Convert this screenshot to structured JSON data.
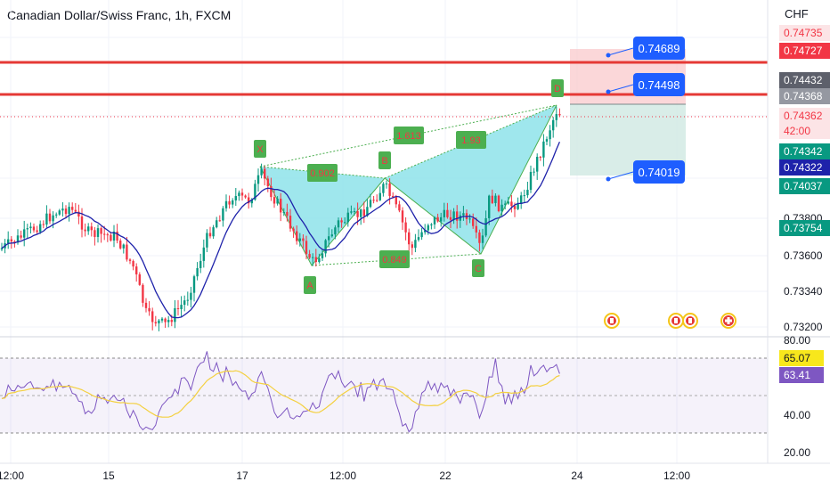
{
  "header": {
    "title": "Canadian Dollar/Swiss Franc, 1h, FXCM",
    "currency": "CHF"
  },
  "colors": {
    "up": "#089981",
    "down": "#f23645",
    "pattern_fill": "#8ee3ea",
    "pattern_line": "#4caf50",
    "ma": "#1e22aa",
    "rsi": "#7e57c2",
    "rsi_ma": "#f4d03f",
    "level": "#e53935",
    "callout": "#1e5eff"
  },
  "chart_data": {
    "type": "candlestick",
    "symbol": "CADCHF",
    "timeframe": "1h",
    "y_axis_ticks": [
      "0.73200",
      "0.73340",
      "0.73600",
      "0.73800"
    ],
    "x_axis_ticks": [
      "12:00",
      "15",
      "17",
      "12:00",
      "22",
      "24",
      "12:00"
    ],
    "price_tags": [
      {
        "label": "0.74735",
        "style": "red-light"
      },
      {
        "label": "0.74727",
        "style": "red"
      },
      {
        "label": "0.74432",
        "style": "dark"
      },
      {
        "label": "0.74368",
        "style": "gray"
      },
      {
        "label": "0.74362",
        "style": "red-light"
      },
      {
        "label": "42:00",
        "style": "red-light"
      },
      {
        "label": "0.74342",
        "style": "green"
      },
      {
        "label": "0.74322",
        "style": "blue"
      },
      {
        "label": "0.74037",
        "style": "green"
      },
      {
        "label": "0.73754",
        "style": "green"
      }
    ],
    "callouts": [
      "0.74689",
      "0.74498",
      "0.74019"
    ],
    "pattern": {
      "points": [
        "X",
        "A",
        "B",
        "C",
        "D"
      ],
      "ratios": [
        "0.902",
        "1.613",
        "0.849",
        "1.93"
      ]
    },
    "rsi": {
      "ticks": [
        "80.00",
        "40.00",
        "20.00"
      ],
      "tags": [
        "65.07",
        "63.41"
      ]
    },
    "event_icons": 4
  }
}
